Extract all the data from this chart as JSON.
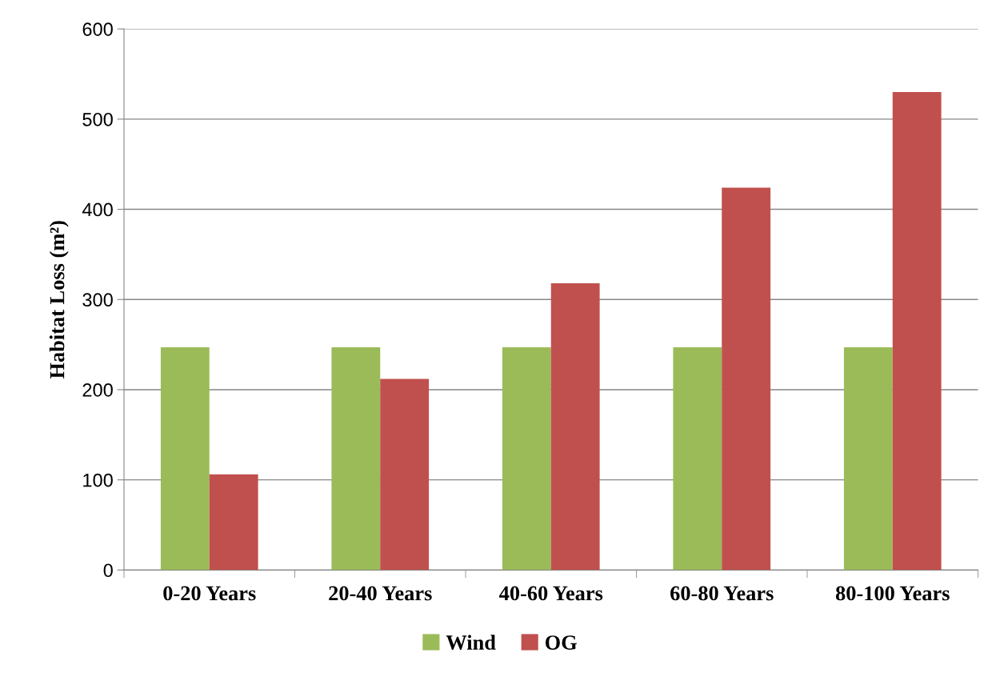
{
  "chart_data": {
    "type": "bar",
    "ylabel": "Habitat Loss (m²)",
    "categories": [
      "0-20 Years",
      "20-40 Years",
      "40-60 Years",
      "60-80 Years",
      "80-100 Years"
    ],
    "series": [
      {
        "name": "Wind",
        "color": "#9bbb59",
        "values": [
          247,
          247,
          247,
          247,
          247
        ]
      },
      {
        "name": "OG",
        "color": "#c0504d",
        "values": [
          106,
          212,
          318,
          424,
          530
        ]
      }
    ],
    "ylim": [
      0,
      600
    ],
    "yticks": [
      0,
      100,
      200,
      300,
      400,
      500,
      600
    ],
    "grid": "y",
    "legend": "bottom"
  }
}
